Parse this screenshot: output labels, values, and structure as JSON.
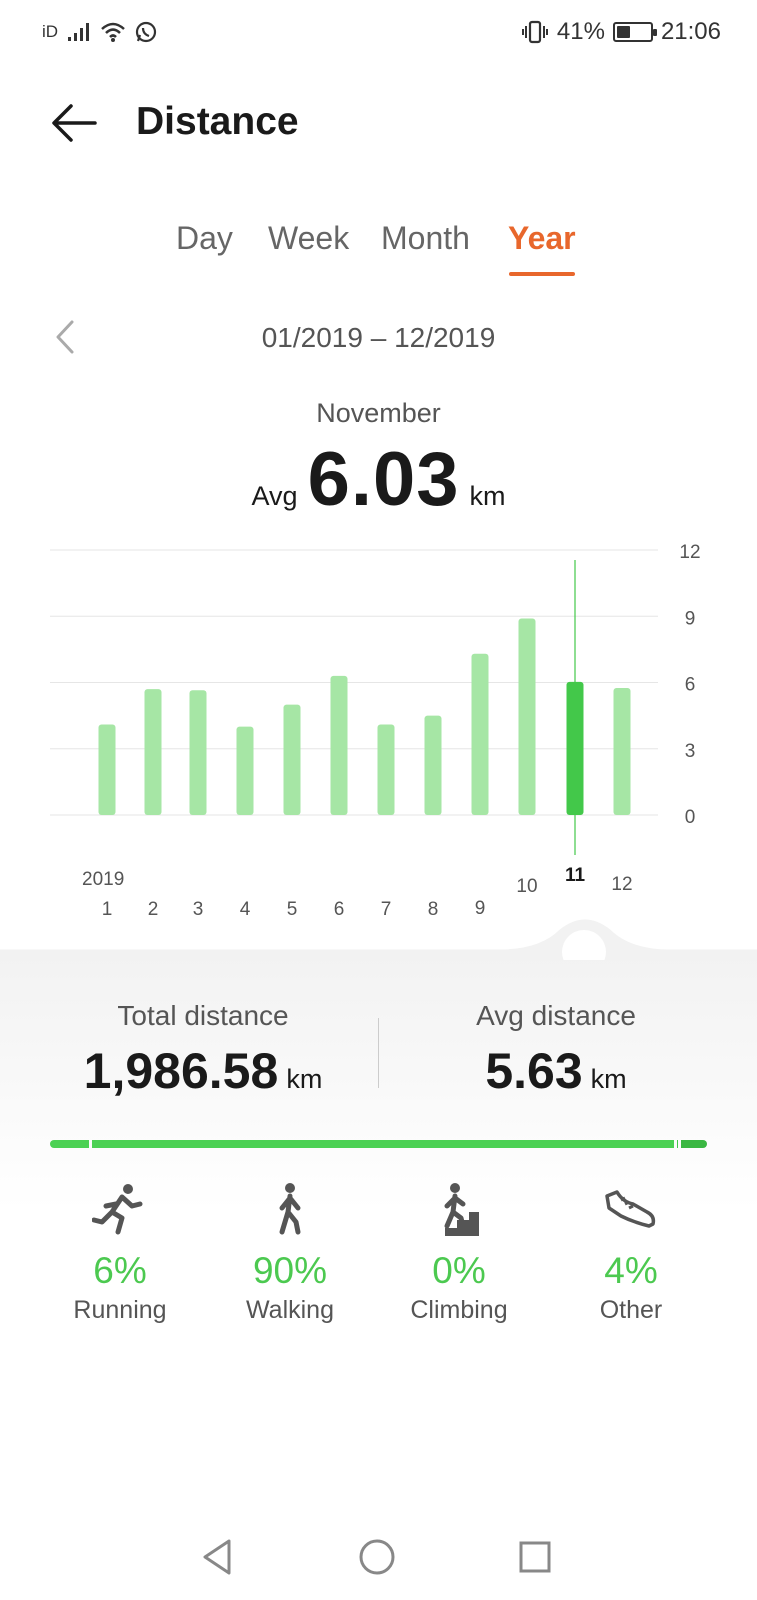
{
  "status_bar": {
    "carrier": "iD",
    "battery_percent": "41%",
    "battery_level": 0.41,
    "time": "21:06"
  },
  "header": {
    "title": "Distance"
  },
  "tabs": [
    {
      "label": "Day",
      "active": false
    },
    {
      "label": "Week",
      "active": false
    },
    {
      "label": "Month",
      "active": false
    },
    {
      "label": "Year",
      "active": true
    }
  ],
  "range": {
    "label": "01/2019 – 12/2019"
  },
  "selection": {
    "month_name": "November",
    "avg_prefix": "Avg",
    "avg_value": "6.03",
    "unit": "km"
  },
  "chart_data": {
    "type": "bar",
    "year_label": "2019",
    "categories": [
      "1",
      "2",
      "3",
      "4",
      "5",
      "6",
      "7",
      "8",
      "9",
      "10",
      "11",
      "12"
    ],
    "values": [
      4.1,
      5.7,
      5.65,
      4.0,
      5.0,
      6.3,
      4.1,
      4.5,
      7.3,
      8.9,
      6.03,
      5.75
    ],
    "selected_index": 10,
    "y_ticks": [
      "12",
      "9",
      "6",
      "3",
      "0"
    ],
    "ylim": [
      0,
      12
    ],
    "grid": true,
    "colors": {
      "bar": "#a6e6a5",
      "bar_selected": "#43c84a"
    }
  },
  "stats": {
    "total_label": "Total distance",
    "total_value": "1,986.58",
    "total_unit": "km",
    "avg_label": "Avg distance",
    "avg_value": "5.63",
    "avg_unit": "km"
  },
  "breakdown": [
    {
      "name": "Running",
      "pct": "6%",
      "fraction": 0.06,
      "icon": "running-icon",
      "color": "#4cd154"
    },
    {
      "name": "Walking",
      "pct": "90%",
      "fraction": 0.9,
      "icon": "walking-icon",
      "color": "#4cd154"
    },
    {
      "name": "Climbing",
      "pct": "0%",
      "fraction": 0.0,
      "icon": "climbing-icon",
      "color": "#44c84b"
    },
    {
      "name": "Other",
      "pct": "4%",
      "fraction": 0.04,
      "icon": "shoe-icon",
      "color": "#3ab742"
    }
  ],
  "navbar": {
    "buttons": [
      "back-triangle-icon",
      "home-circle-icon",
      "recents-square-icon"
    ]
  }
}
